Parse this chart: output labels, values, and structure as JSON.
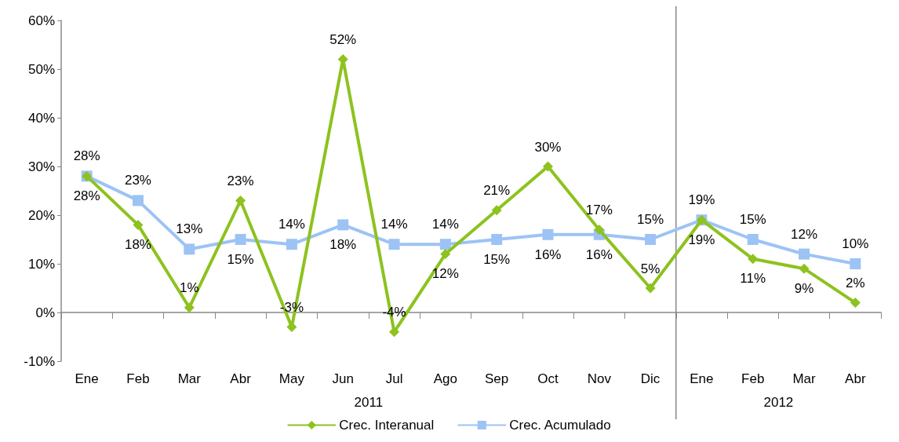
{
  "chart_data": {
    "type": "line",
    "categories": [
      "Ene",
      "Feb",
      "Mar",
      "Abr",
      "May",
      "Jun",
      "Jul",
      "Ago",
      "Sep",
      "Oct",
      "Nov",
      "Dic",
      "Ene",
      "Feb",
      "Mar",
      "Abr"
    ],
    "series": [
      {
        "name": "Crec. Interanual",
        "color": "#8dc21f",
        "marker": "diamond",
        "values": [
          28,
          18,
          1,
          23,
          -3,
          52,
          -4,
          12,
          21,
          30,
          17,
          5,
          19,
          11,
          9,
          2
        ],
        "value_labels": [
          "28%",
          "18%",
          "1%",
          "23%",
          "-3%",
          "52%",
          "-4%",
          "12%",
          "21%",
          "30%",
          "17%",
          "5%",
          "19%",
          "11%",
          "9%",
          "2%"
        ]
      },
      {
        "name": "Crec. Acumulado",
        "color": "#9dc3f5",
        "marker": "square",
        "values": [
          28,
          23,
          13,
          15,
          14,
          18,
          14,
          14,
          15,
          16,
          16,
          15,
          19,
          15,
          12,
          10
        ],
        "value_labels": [
          "28%",
          "23%",
          "13%",
          "15%",
          "14%",
          "18%",
          "14%",
          "14%",
          "15%",
          "16%",
          "16%",
          "15%",
          "19%",
          "15%",
          "12%",
          "10%"
        ]
      }
    ],
    "annotations": [
      "2011",
      "2012"
    ],
    "ylim": [
      -10,
      60
    ],
    "yticks": [
      {
        "value": -10,
        "label": "-10%"
      },
      {
        "value": 0,
        "label": "0%"
      },
      {
        "value": 10,
        "label": "10%"
      },
      {
        "value": 20,
        "label": "20%"
      },
      {
        "value": 30,
        "label": "30%"
      },
      {
        "value": 40,
        "label": "40%"
      },
      {
        "value": 50,
        "label": "50%"
      },
      {
        "value": 60,
        "label": "60%"
      }
    ],
    "legend": "bottom",
    "line_style": "solid"
  }
}
